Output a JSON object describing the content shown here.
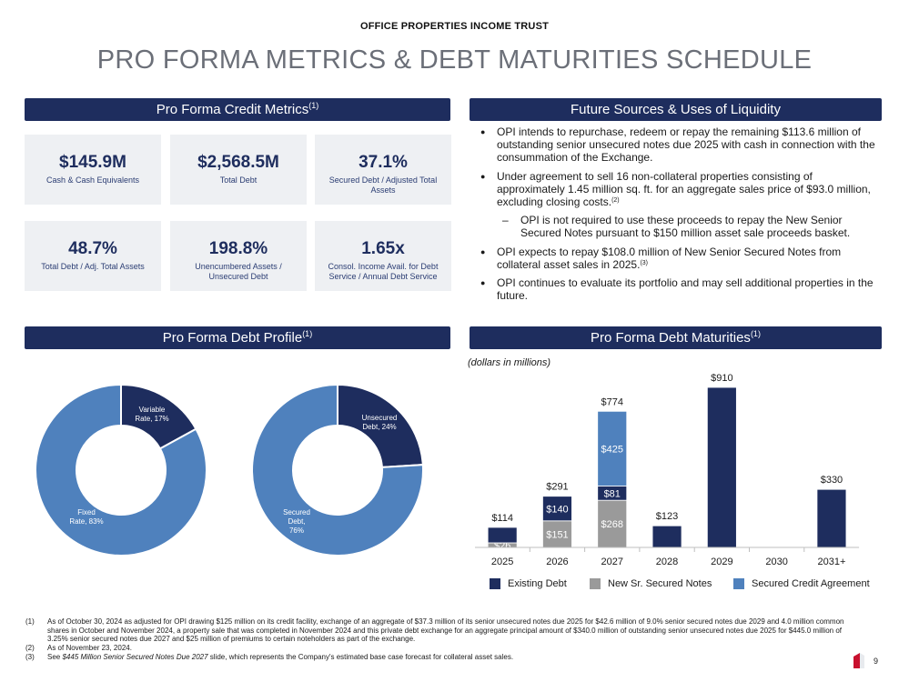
{
  "header": {
    "company": "OFFICE PROPERTIES INCOME TRUST",
    "title": "PRO FORMA METRICS & DEBT MATURITIES SCHEDULE"
  },
  "sections": {
    "credit_metrics": {
      "label": "Pro Forma Credit Metrics",
      "note": "(1)"
    },
    "liquidity": {
      "label": "Future Sources & Uses of Liquidity"
    },
    "debt_profile": {
      "label": "Pro Forma Debt Profile",
      "note": "(1)"
    },
    "debt_maturities": {
      "label": "Pro Forma Debt Maturities",
      "note": "(1)"
    }
  },
  "metrics": [
    {
      "value": "$145.9M",
      "label": "Cash & Cash Equivalents"
    },
    {
      "value": "$2,568.5M",
      "label": "Total Debt"
    },
    {
      "value": "37.1%",
      "label": "Secured Debt / Adjusted Total Assets"
    },
    {
      "value": "48.7%",
      "label": "Total Debt / Adj. Total Assets"
    },
    {
      "value": "198.8%",
      "label": "Unencumbered Assets / Unsecured Debt"
    },
    {
      "value": "1.65x",
      "label": "Consol. Income Avail. for Debt Service / Annual Debt Service"
    }
  ],
  "liquidity_items": [
    {
      "text": "OPI intends to repurchase, redeem or repay the remaining $113.6 million of outstanding senior unsecured notes due 2025 with cash in connection with the consummation of the Exchange.",
      "note": ""
    },
    {
      "text": "Under agreement to sell 16 non-collateral properties consisting of approximately 1.45 million sq. ft. for an aggregate sales price of $93.0 million, excluding closing costs.",
      "note": "(2)"
    },
    {
      "text": "OPI is not required to use these proceeds to repay the New Senior Secured Notes pursuant to $150 million asset sale proceeds basket.",
      "note": ""
    },
    {
      "text": "OPI expects to repay $108.0 million of New Senior Secured Notes from collateral asset sales in 2025.",
      "note": "(3)"
    },
    {
      "text": "OPI continues to evaluate its portfolio and may sell additional properties in the future.",
      "note": ""
    }
  ],
  "maturities_units": "(dollars in millions)",
  "colors": {
    "navy": "#1e2d5e",
    "gray": "#9a9a9a",
    "blue": "#4f81bd"
  },
  "chart_data": [
    {
      "type": "pie",
      "variant": "donut",
      "slices": [
        {
          "label": "Variable Rate, 17%",
          "value": 17,
          "color": "#1e2d5e"
        },
        {
          "label": "Fixed Rate, 83%",
          "value": 83,
          "color": "#4f81bd"
        }
      ]
    },
    {
      "type": "pie",
      "variant": "donut",
      "slices": [
        {
          "label": "Unsecured Debt, 24%",
          "value": 24,
          "color": "#1e2d5e"
        },
        {
          "label": "Secured Debt, 76%",
          "value": 76,
          "color": "#4f81bd"
        }
      ]
    },
    {
      "type": "bar",
      "stacked": true,
      "categories": [
        "2025",
        "2026",
        "2027",
        "2028",
        "2029",
        "2030",
        "2031+"
      ],
      "series": [
        {
          "name": "New Sr. Secured Notes",
          "color": "#9a9a9a",
          "values": [
            26,
            151,
            268,
            0,
            0,
            0,
            0
          ],
          "labels": [
            "$26",
            "$151",
            "$268",
            "",
            "",
            "",
            ""
          ]
        },
        {
          "name": "Existing Debt",
          "color": "#1e2d5e",
          "values": [
            88,
            140,
            81,
            123,
            910,
            0,
            330
          ],
          "labels": [
            "",
            "$140",
            "$81",
            "",
            "",
            "",
            ""
          ]
        },
        {
          "name": "Secured Credit Agreement",
          "color": "#4f81bd",
          "values": [
            0,
            0,
            425,
            0,
            0,
            0,
            0
          ],
          "labels": [
            "",
            "",
            "$425",
            "",
            "",
            "",
            ""
          ]
        }
      ],
      "totals": [
        "$114",
        "$291",
        "$774",
        "$123",
        "$910",
        "",
        "$330"
      ],
      "legend": [
        "Existing Debt",
        "New Sr. Secured Notes",
        "Secured Credit Agreement"
      ],
      "legend_position": "bottom",
      "ylim": [
        0,
        910
      ],
      "grid": false
    }
  ],
  "footnotes": [
    {
      "num": "(1)",
      "text": "As of October 30, 2024 as adjusted for OPI drawing $125 million on its credit facility, exchange of an aggregate of $37.3 million of its senior unsecured notes due 2025 for $42.6 million of 9.0% senior secured notes due 2029 and 4.0 million common shares in October and November 2024, a property sale that was completed in November 2024 and this private debt exchange for an aggregate principal amount of $340.0 million of outstanding senior unsecured notes due 2025 for $445.0 million of 3.25% senior secured notes due 2027 and $25 million of premiums to certain noteholders as part of the exchange."
    },
    {
      "num": "(2)",
      "text": "As of November 23, 2024."
    },
    {
      "num": "(3)",
      "text_pre": "See ",
      "text_italic": "$445 Million Senior Secured Notes Due 2027",
      "text_post": " slide, which represents the Company's estimated base case forecast for collateral asset sales."
    }
  ],
  "page_number": "9"
}
